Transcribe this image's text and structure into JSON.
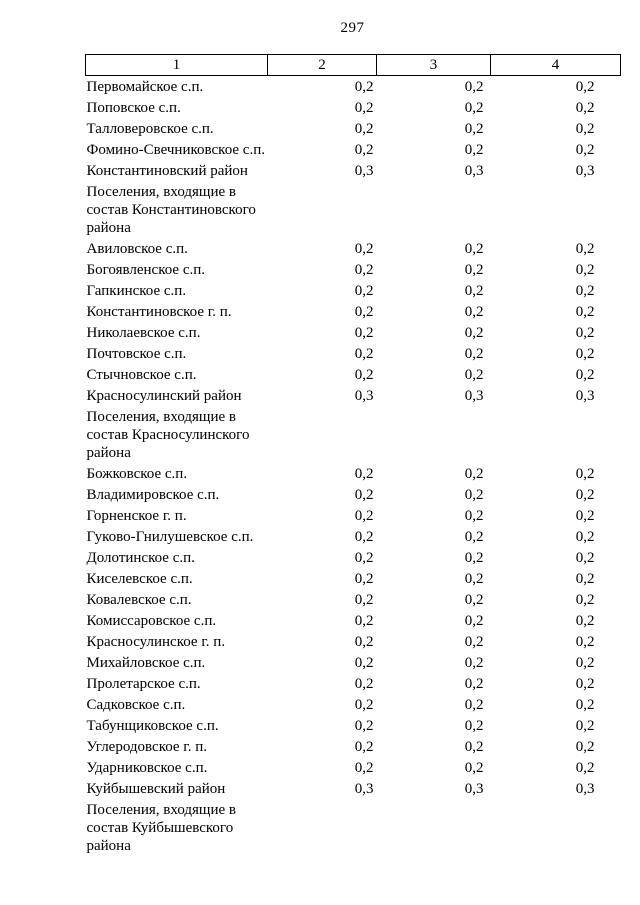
{
  "page": {
    "number": "297"
  },
  "table": {
    "headers": [
      "1",
      "2",
      "3",
      "4"
    ],
    "rows": [
      {
        "label": "Первомайское с.п.",
        "values": [
          "0,2",
          "0,2",
          "0,2"
        ]
      },
      {
        "label": "Поповское с.п.",
        "values": [
          "0,2",
          "0,2",
          "0,2"
        ]
      },
      {
        "label": "Талловеровское с.п.",
        "values": [
          "0,2",
          "0,2",
          "0,2"
        ]
      },
      {
        "label": "Фомино-Свечниковское с.п.",
        "values": [
          "0,2",
          "0,2",
          "0,2"
        ]
      },
      {
        "label": "Константиновский район",
        "values": [
          "0,3",
          "0,3",
          "0,3"
        ]
      },
      {
        "label": "Поселения, входящие в состав Константиновского района",
        "values": [
          "",
          "",
          ""
        ]
      },
      {
        "label": "Авиловское с.п.",
        "values": [
          "0,2",
          "0,2",
          "0,2"
        ]
      },
      {
        "label": "Богоявленское с.п.",
        "values": [
          "0,2",
          "0,2",
          "0,2"
        ]
      },
      {
        "label": "Гапкинское с.п.",
        "values": [
          "0,2",
          "0,2",
          "0,2"
        ]
      },
      {
        "label": "Константиновское г. п.",
        "values": [
          "0,2",
          "0,2",
          "0,2"
        ]
      },
      {
        "label": "Николаевское с.п.",
        "values": [
          "0,2",
          "0,2",
          "0,2"
        ]
      },
      {
        "label": "Почтовское с.п.",
        "values": [
          "0,2",
          "0,2",
          "0,2"
        ]
      },
      {
        "label": "Стычновское с.п.",
        "values": [
          "0,2",
          "0,2",
          "0,2"
        ]
      },
      {
        "label": "Красносулинский район",
        "values": [
          "0,3",
          "0,3",
          "0,3"
        ]
      },
      {
        "label": "Поселения, входящие в состав Красносулинского района",
        "values": [
          "",
          "",
          ""
        ]
      },
      {
        "label": "Божковское с.п.",
        "values": [
          "0,2",
          "0,2",
          "0,2"
        ]
      },
      {
        "label": "Владимировское с.п.",
        "values": [
          "0,2",
          "0,2",
          "0,2"
        ]
      },
      {
        "label": "Горненское г. п.",
        "values": [
          "0,2",
          "0,2",
          "0,2"
        ]
      },
      {
        "label": "Гуково-Гнилушевское с.п.",
        "values": [
          "0,2",
          "0,2",
          "0,2"
        ]
      },
      {
        "label": "Долотинское с.п.",
        "values": [
          "0,2",
          "0,2",
          "0,2"
        ]
      },
      {
        "label": "Киселевское с.п.",
        "values": [
          "0,2",
          "0,2",
          "0,2"
        ]
      },
      {
        "label": "Ковалевское с.п.",
        "values": [
          "0,2",
          "0,2",
          "0,2"
        ]
      },
      {
        "label": "Комиссаровское с.п.",
        "values": [
          "0,2",
          "0,2",
          "0,2"
        ]
      },
      {
        "label": "Красносулинское г. п.",
        "values": [
          "0,2",
          "0,2",
          "0,2"
        ]
      },
      {
        "label": "Михайловское с.п.",
        "values": [
          "0,2",
          "0,2",
          "0,2"
        ]
      },
      {
        "label": "Пролетарское с.п.",
        "values": [
          "0,2",
          "0,2",
          "0,2"
        ]
      },
      {
        "label": "Садковское с.п.",
        "values": [
          "0,2",
          "0,2",
          "0,2"
        ]
      },
      {
        "label": "Табунщиковское с.п.",
        "values": [
          "0,2",
          "0,2",
          "0,2"
        ]
      },
      {
        "label": "Углеродовское г. п.",
        "values": [
          "0,2",
          "0,2",
          "0,2"
        ]
      },
      {
        "label": "Ударниковское с.п.",
        "values": [
          "0,2",
          "0,2",
          "0,2"
        ]
      },
      {
        "label": "Куйбышевский район",
        "values": [
          "0,3",
          "0,3",
          "0,3"
        ]
      },
      {
        "label": "Поселения, входящие в состав Куйбышевского района",
        "values": [
          "",
          "",
          ""
        ]
      }
    ]
  }
}
